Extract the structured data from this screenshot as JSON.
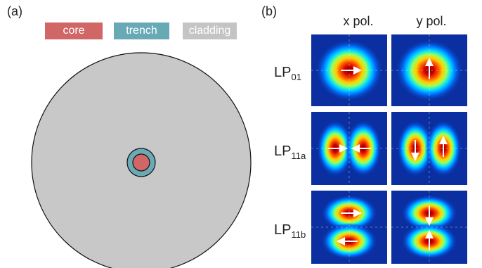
{
  "panels": {
    "a": "(a)",
    "b": "(b)"
  },
  "legend": [
    {
      "label": "core",
      "color": "#d06666"
    },
    {
      "label": "trench",
      "color": "#67aab6"
    },
    {
      "label": "cladding",
      "color": "#c4c4c4"
    }
  ],
  "columns": [
    "x pol.",
    "y pol."
  ],
  "modes": [
    {
      "base": "LP",
      "sub": "01"
    },
    {
      "base": "LP",
      "sub": "11a"
    },
    {
      "base": "LP",
      "sub": "11b"
    }
  ],
  "colors": {
    "cladding": "#c8c8c8",
    "trench": "#6aaab4",
    "core": "#d06666",
    "field_bg": "#0b2fa0"
  }
}
